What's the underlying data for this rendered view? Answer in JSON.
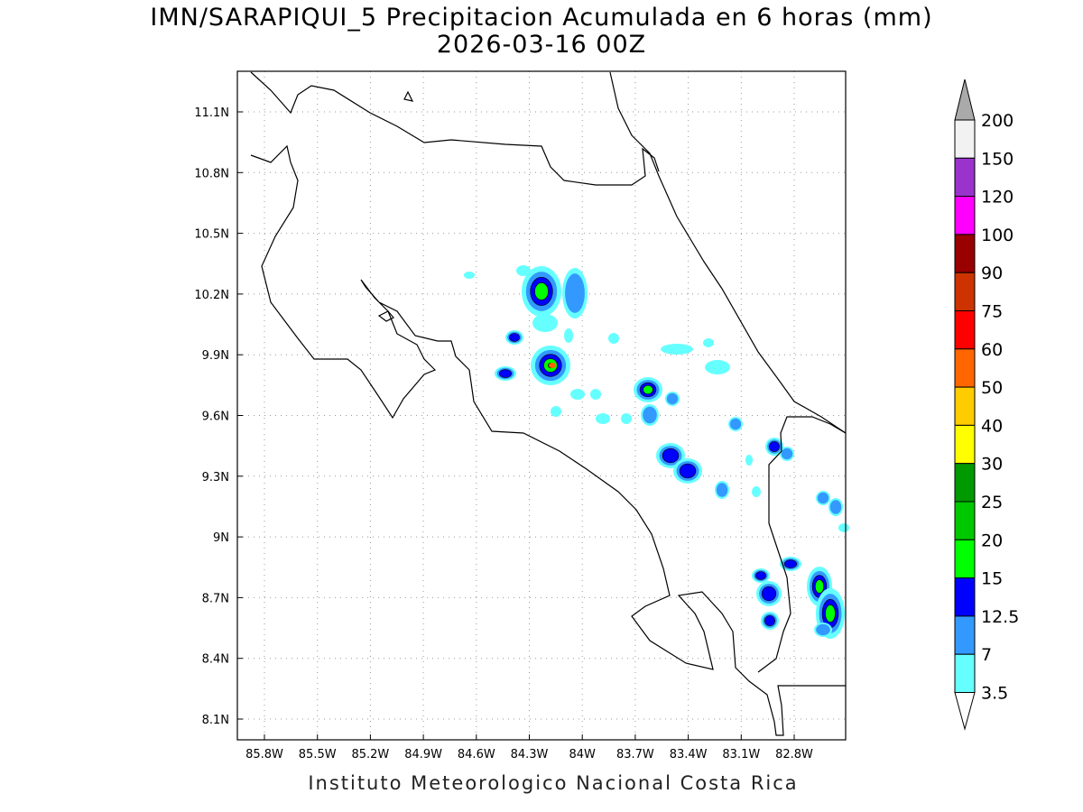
{
  "title": "IMN/SARAPIQUI_5 Precipitacion Acumulada en 6 horas (mm)",
  "subtitle": "2026-03-16 00Z",
  "credit": "Instituto Meteorologico Nacional Costa Rica",
  "map": {
    "lon_ticks": [
      "85.8W",
      "85.5W",
      "85.2W",
      "84.9W",
      "84.6W",
      "84.3W",
      "84W",
      "83.7W",
      "83.4W",
      "83.1W",
      "82.8W"
    ],
    "lat_ticks": [
      "11.1N",
      "10.8N",
      "10.5N",
      "10.2N",
      "9.9N",
      "9.6N",
      "9.3N",
      "9N",
      "8.7N",
      "8.4N",
      "8.1N"
    ]
  },
  "legend": {
    "labels": [
      "200",
      "150",
      "120",
      "100",
      "90",
      "75",
      "60",
      "50",
      "40",
      "30",
      "25",
      "20",
      "15",
      "12.5",
      "7",
      "3.5"
    ],
    "colors": [
      "#f2f2f2",
      "#9933cc",
      "#ff00ff",
      "#990000",
      "#cc3300",
      "#ff0000",
      "#ff6600",
      "#ffcc00",
      "#ffff00",
      "#009900",
      "#00c800",
      "#00ff00",
      "#0000ff",
      "#3399ff",
      "#66ffff"
    ],
    "over_color": "#aaaaaa",
    "under_color": "#ffffff"
  }
}
